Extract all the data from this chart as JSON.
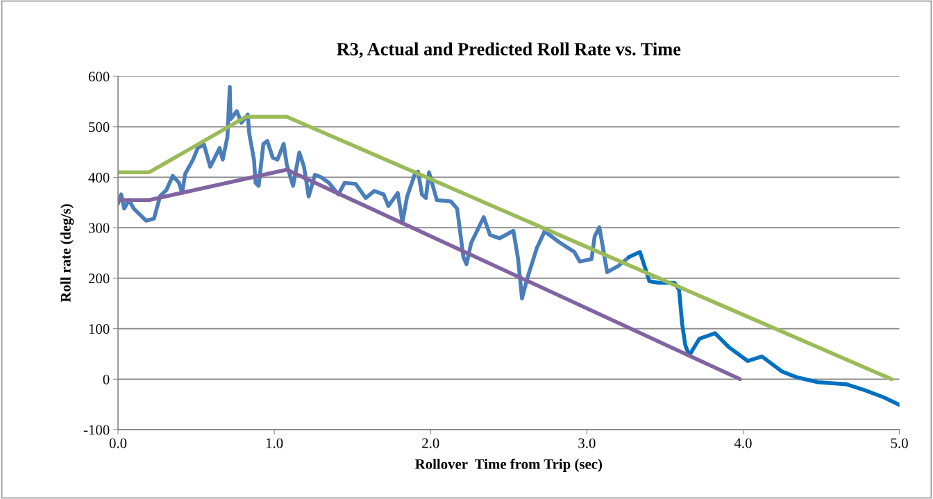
{
  "chart_data": {
    "type": "line",
    "title": "R3, Actual and Predicted Roll Rate vs. Time",
    "xlabel": "Rollover  Time from Trip (sec)",
    "ylabel": "Roll rate (deg/s)",
    "xlim": [
      0,
      5
    ],
    "xticks": [
      {
        "value": 0,
        "label": "0.0"
      },
      {
        "value": 1,
        "label": "1.0"
      },
      {
        "value": 2,
        "label": "2.0"
      },
      {
        "value": 3,
        "label": "3.0"
      },
      {
        "value": 4,
        "label": "4.0"
      },
      {
        "value": 5,
        "label": "5.0"
      }
    ],
    "ylim": [
      -100,
      600
    ],
    "yticks": [
      -100,
      0,
      100,
      200,
      300,
      400,
      500,
      600
    ],
    "grid": "y",
    "legend": false,
    "marker": "none",
    "line_style": "solid",
    "series": [
      {
        "color": "#4a7ebb",
        "x": [
          0,
          0.02,
          0.04,
          0.07,
          0.1,
          0.18,
          0.23,
          0.27,
          0.31,
          0.35,
          0.39,
          0.41,
          0.43,
          0.48,
          0.51,
          0.55,
          0.59,
          0.65,
          0.67,
          0.7,
          0.715,
          0.72,
          0.76,
          0.79,
          0.83,
          0.84,
          0.87,
          0.88,
          0.9,
          0.93,
          0.955,
          0.99,
          1.02,
          1.06,
          1.08,
          1.12,
          1.16,
          1.19,
          1.22,
          1.26,
          1.3,
          1.35,
          1.41,
          1.45,
          1.52,
          1.585,
          1.64,
          1.7,
          1.73,
          1.79,
          1.82,
          1.85,
          1.9,
          1.92,
          1.945,
          1.97,
          1.99,
          2.04,
          2.13,
          2.17,
          2.21,
          2.23,
          2.26,
          2.34,
          2.38,
          2.44,
          2.53,
          2.56,
          2.585,
          2.62,
          2.68,
          2.73,
          2.82,
          2.92,
          2.955,
          3.03,
          3.05,
          3.08,
          3.1,
          3.13,
          3.2,
          3.27
        ],
        "values": [
          348,
          366,
          338,
          355,
          338,
          314,
          318,
          363,
          375,
          403,
          389,
          369,
          407,
          435,
          458,
          465,
          421,
          458,
          435,
          480,
          579,
          515,
          531,
          508,
          524,
          486,
          435,
          389,
          383,
          466,
          472,
          439,
          435,
          466,
          425,
          383,
          449,
          421,
          362,
          405,
          400,
          389,
          366,
          389,
          387,
          359,
          373,
          366,
          343,
          369,
          311,
          362,
          407,
          411,
          366,
          359,
          410,
          355,
          352,
          338,
          242,
          228,
          270,
          321,
          286,
          279,
          294,
          238,
          160,
          201,
          260,
          293,
          272,
          252,
          233,
          238,
          283,
          301,
          266,
          212,
          224,
          242
        ]
      },
      {
        "color": "#0070c0",
        "x": [
          3.27,
          3.34,
          3.4,
          3.46,
          3.56,
          3.59,
          3.61,
          3.63,
          3.655,
          3.72,
          3.82,
          3.91,
          4.03,
          4.12,
          4.25,
          4.34,
          4.48,
          4.66,
          4.78,
          4.9,
          5.0
        ],
        "values": [
          242,
          252,
          194,
          191,
          191,
          177,
          109,
          67,
          47,
          80,
          91,
          63,
          36,
          45,
          15,
          4,
          -6,
          -10,
          -22,
          -36,
          -51
        ]
      },
      {
        "color": "#8064a2",
        "x": [
          0,
          0.2,
          1.08,
          3.98
        ],
        "values": [
          355,
          355,
          415,
          0
        ]
      },
      {
        "color": "#9bbb59",
        "x": [
          0,
          0.2,
          0.82,
          1.08,
          4.95
        ],
        "values": [
          410,
          410,
          520,
          520,
          0
        ]
      }
    ]
  }
}
